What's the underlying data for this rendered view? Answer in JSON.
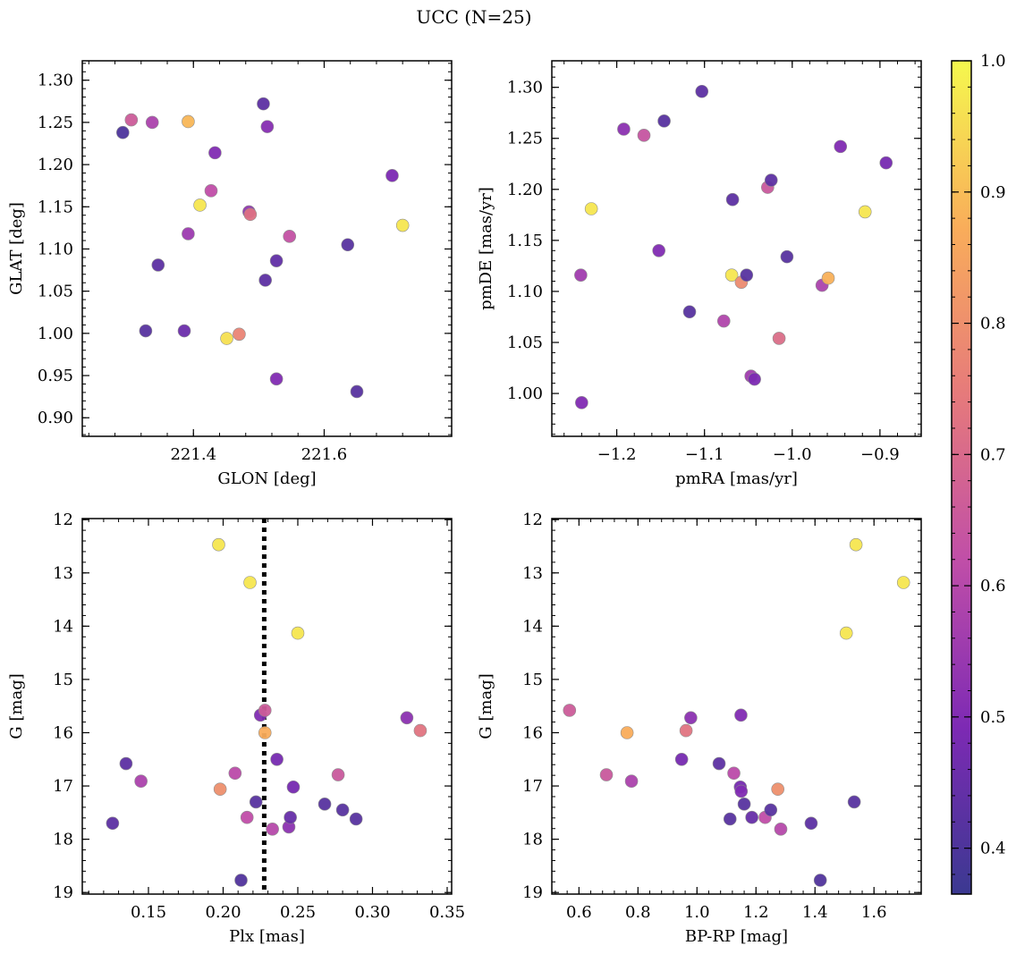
{
  "figure": {
    "title": "UCC (N=25)"
  },
  "colorbar": {
    "range": [
      0.365,
      1.0
    ],
    "ticks": [
      0.4,
      0.5,
      0.6,
      0.7,
      0.8,
      0.9,
      1.0
    ],
    "tick_labels": [
      "0.4",
      "0.5",
      "0.6",
      "0.7",
      "0.8",
      "0.9",
      "1.0"
    ],
    "colormap": "plasma",
    "stops": [
      "#3b3991",
      "#7d2ab4",
      "#c04ea8",
      "#e67a7b",
      "#f9ad5a",
      "#f5f84e"
    ]
  },
  "chart_data": [
    {
      "id": "glon-glat",
      "type": "scatter",
      "xlabel": "GLON [deg]",
      "ylabel": "GLAT [deg]",
      "xlim": [
        221.23,
        221.795
      ],
      "ylim": [
        0.878,
        1.323
      ],
      "xticks": [
        221.4,
        221.6
      ],
      "xtick_labels": [
        "221.4",
        "221.6"
      ],
      "yticks": [
        0.9,
        0.95,
        1.0,
        1.05,
        1.1,
        1.15,
        1.2,
        1.25,
        1.3
      ],
      "ytick_labels": [
        "0.90",
        "0.95",
        "1.00",
        "1.05",
        "1.10",
        "1.15",
        "1.20",
        "1.25",
        "1.30"
      ],
      "y_inverted": false,
      "points": [
        {
          "x": 221.292,
          "y": 1.238,
          "c": 0.4
        },
        {
          "x": 221.305,
          "y": 1.253,
          "c": 0.66
        },
        {
          "x": 221.337,
          "y": 1.25,
          "c": 0.58
        },
        {
          "x": 221.392,
          "y": 1.251,
          "c": 0.89
        },
        {
          "x": 221.346,
          "y": 1.081,
          "c": 0.43
        },
        {
          "x": 221.327,
          "y": 1.003,
          "c": 0.42
        },
        {
          "x": 221.386,
          "y": 1.003,
          "c": 0.46
        },
        {
          "x": 221.392,
          "y": 1.118,
          "c": 0.55
        },
        {
          "x": 221.41,
          "y": 1.152,
          "c": 0.97
        },
        {
          "x": 221.427,
          "y": 1.169,
          "c": 0.62
        },
        {
          "x": 221.433,
          "y": 1.214,
          "c": 0.5
        },
        {
          "x": 221.451,
          "y": 0.994,
          "c": 0.96
        },
        {
          "x": 221.47,
          "y": 0.999,
          "c": 0.77
        },
        {
          "x": 221.485,
          "y": 1.144,
          "c": 0.53
        },
        {
          "x": 221.487,
          "y": 1.141,
          "c": 0.72
        },
        {
          "x": 221.507,
          "y": 1.272,
          "c": 0.43
        },
        {
          "x": 221.513,
          "y": 1.245,
          "c": 0.51
        },
        {
          "x": 221.51,
          "y": 1.063,
          "c": 0.43
        },
        {
          "x": 221.527,
          "y": 1.086,
          "c": 0.44
        },
        {
          "x": 221.527,
          "y": 0.946,
          "c": 0.5
        },
        {
          "x": 221.547,
          "y": 1.115,
          "c": 0.63
        },
        {
          "x": 221.636,
          "y": 1.105,
          "c": 0.42
        },
        {
          "x": 221.65,
          "y": 0.931,
          "c": 0.42
        },
        {
          "x": 221.704,
          "y": 1.187,
          "c": 0.49
        },
        {
          "x": 221.72,
          "y": 1.128,
          "c": 0.97
        }
      ]
    },
    {
      "id": "pmra-pmde",
      "type": "scatter",
      "xlabel": "pmRA [mas/yr]",
      "ylabel": "pmDE [mas/yr]",
      "xlim": [
        -1.274,
        -0.853
      ],
      "ylim": [
        0.958,
        1.326
      ],
      "xticks": [
        -1.2,
        -1.1,
        -1.0,
        -0.9
      ],
      "xtick_labels": [
        "−1.2",
        "−1.1",
        "−1.0",
        "−0.9"
      ],
      "yticks": [
        1.0,
        1.05,
        1.1,
        1.15,
        1.2,
        1.25,
        1.3
      ],
      "ytick_labels": [
        "1.00",
        "1.05",
        "1.10",
        "1.15",
        "1.20",
        "1.25",
        "1.30"
      ],
      "y_inverted": false,
      "points": [
        {
          "x": -1.241,
          "y": 1.116,
          "c": 0.56
        },
        {
          "x": -1.24,
          "y": 0.991,
          "c": 0.5
        },
        {
          "x": -1.229,
          "y": 1.181,
          "c": 0.97
        },
        {
          "x": -1.192,
          "y": 1.259,
          "c": 0.52
        },
        {
          "x": -1.169,
          "y": 1.253,
          "c": 0.64
        },
        {
          "x": -1.152,
          "y": 1.14,
          "c": 0.5
        },
        {
          "x": -1.146,
          "y": 1.267,
          "c": 0.42
        },
        {
          "x": -1.117,
          "y": 1.08,
          "c": 0.42
        },
        {
          "x": -1.103,
          "y": 1.296,
          "c": 0.43
        },
        {
          "x": -1.078,
          "y": 1.071,
          "c": 0.59
        },
        {
          "x": -1.068,
          "y": 1.19,
          "c": 0.43
        },
        {
          "x": -1.069,
          "y": 1.116,
          "c": 0.97
        },
        {
          "x": -1.058,
          "y": 1.109,
          "c": 0.79
        },
        {
          "x": -1.052,
          "y": 1.116,
          "c": 0.42
        },
        {
          "x": -1.047,
          "y": 1.017,
          "c": 0.56
        },
        {
          "x": -1.043,
          "y": 1.014,
          "c": 0.49
        },
        {
          "x": -1.028,
          "y": 1.202,
          "c": 0.65
        },
        {
          "x": -1.024,
          "y": 1.209,
          "c": 0.43
        },
        {
          "x": -1.015,
          "y": 1.054,
          "c": 0.71
        },
        {
          "x": -1.006,
          "y": 1.134,
          "c": 0.42
        },
        {
          "x": -0.966,
          "y": 1.106,
          "c": 0.58
        },
        {
          "x": -0.959,
          "y": 1.113,
          "c": 0.88
        },
        {
          "x": -0.945,
          "y": 1.242,
          "c": 0.5
        },
        {
          "x": -0.917,
          "y": 1.178,
          "c": 0.97
        },
        {
          "x": -0.893,
          "y": 1.226,
          "c": 0.48
        }
      ]
    },
    {
      "id": "plx-g",
      "type": "scatter",
      "xlabel": "Plx [mas]",
      "ylabel": "G [mag]",
      "xlim": [
        0.1057,
        0.353
      ],
      "ylim": [
        11.98,
        19.03
      ],
      "xticks": [
        0.15,
        0.2,
        0.25,
        0.3,
        0.35
      ],
      "xtick_labels": [
        "0.15",
        "0.20",
        "0.25",
        "0.30",
        "0.35"
      ],
      "yticks": [
        12,
        13,
        14,
        15,
        16,
        17,
        18,
        19
      ],
      "ytick_labels": [
        "12",
        "13",
        "14",
        "15",
        "16",
        "17",
        "18",
        "19"
      ],
      "y_inverted": true,
      "vline": 0.2275,
      "points": [
        {
          "x": 0.197,
          "y": 12.47,
          "c": 0.97
        },
        {
          "x": 0.218,
          "y": 13.18,
          "c": 0.97
        },
        {
          "x": 0.25,
          "y": 14.13,
          "c": 0.97
        },
        {
          "x": 0.225,
          "y": 15.67,
          "c": 0.5
        },
        {
          "x": 0.228,
          "y": 15.58,
          "c": 0.66
        },
        {
          "x": 0.228,
          "y": 16.0,
          "c": 0.87
        },
        {
          "x": 0.236,
          "y": 16.5,
          "c": 0.48
        },
        {
          "x": 0.323,
          "y": 15.72,
          "c": 0.52
        },
        {
          "x": 0.332,
          "y": 15.96,
          "c": 0.73
        },
        {
          "x": 0.135,
          "y": 16.58,
          "c": 0.43
        },
        {
          "x": 0.145,
          "y": 16.91,
          "c": 0.58
        },
        {
          "x": 0.208,
          "y": 16.76,
          "c": 0.61
        },
        {
          "x": 0.198,
          "y": 17.06,
          "c": 0.8
        },
        {
          "x": 0.222,
          "y": 17.3,
          "c": 0.42
        },
        {
          "x": 0.247,
          "y": 17.02,
          "c": 0.48
        },
        {
          "x": 0.277,
          "y": 16.79,
          "c": 0.65
        },
        {
          "x": 0.126,
          "y": 17.7,
          "c": 0.43
        },
        {
          "x": 0.216,
          "y": 17.59,
          "c": 0.62
        },
        {
          "x": 0.233,
          "y": 17.81,
          "c": 0.6
        },
        {
          "x": 0.244,
          "y": 17.77,
          "c": 0.52
        },
        {
          "x": 0.245,
          "y": 17.59,
          "c": 0.45
        },
        {
          "x": 0.268,
          "y": 17.34,
          "c": 0.42
        },
        {
          "x": 0.28,
          "y": 17.45,
          "c": 0.42
        },
        {
          "x": 0.289,
          "y": 17.62,
          "c": 0.42
        },
        {
          "x": 0.212,
          "y": 18.77,
          "c": 0.41
        }
      ]
    },
    {
      "id": "bprp-g",
      "type": "scatter",
      "xlabel": "BP-RP [mag]",
      "ylabel": "G [mag]",
      "xlim": [
        0.508,
        1.76
      ],
      "ylim": [
        11.98,
        19.03
      ],
      "xticks": [
        0.6,
        0.8,
        1.0,
        1.2,
        1.4,
        1.6
      ],
      "xtick_labels": [
        "0.6",
        "0.8",
        "1.0",
        "1.2",
        "1.4",
        "1.6"
      ],
      "yticks": [
        12,
        13,
        14,
        15,
        16,
        17,
        18,
        19
      ],
      "ytick_labels": [
        "12",
        "13",
        "14",
        "15",
        "16",
        "17",
        "18",
        "19"
      ],
      "y_inverted": true,
      "points": [
        {
          "x": 1.539,
          "y": 12.47,
          "c": 0.97
        },
        {
          "x": 1.7,
          "y": 13.18,
          "c": 0.97
        },
        {
          "x": 1.506,
          "y": 14.13,
          "c": 0.97
        },
        {
          "x": 0.568,
          "y": 15.58,
          "c": 0.66
        },
        {
          "x": 0.763,
          "y": 16.0,
          "c": 0.87
        },
        {
          "x": 0.963,
          "y": 15.96,
          "c": 0.73
        },
        {
          "x": 0.979,
          "y": 15.72,
          "c": 0.52
        },
        {
          "x": 1.149,
          "y": 15.67,
          "c": 0.5
        },
        {
          "x": 0.948,
          "y": 16.5,
          "c": 0.48
        },
        {
          "x": 1.075,
          "y": 16.58,
          "c": 0.43
        },
        {
          "x": 0.693,
          "y": 16.79,
          "c": 0.65
        },
        {
          "x": 0.778,
          "y": 16.91,
          "c": 0.58
        },
        {
          "x": 1.125,
          "y": 16.76,
          "c": 0.61
        },
        {
          "x": 1.147,
          "y": 17.02,
          "c": 0.48
        },
        {
          "x": 1.274,
          "y": 17.06,
          "c": 0.8
        },
        {
          "x": 1.16,
          "y": 17.34,
          "c": 0.42
        },
        {
          "x": 1.533,
          "y": 17.3,
          "c": 0.42
        },
        {
          "x": 1.112,
          "y": 17.62,
          "c": 0.42
        },
        {
          "x": 1.186,
          "y": 17.59,
          "c": 0.45
        },
        {
          "x": 1.231,
          "y": 17.59,
          "c": 0.62
        },
        {
          "x": 1.25,
          "y": 17.45,
          "c": 0.42
        },
        {
          "x": 1.284,
          "y": 17.81,
          "c": 0.6
        },
        {
          "x": 1.387,
          "y": 17.7,
          "c": 0.43
        },
        {
          "x": 1.418,
          "y": 18.77,
          "c": 0.41
        },
        {
          "x": 1.15,
          "y": 17.1,
          "c": 0.5
        }
      ]
    }
  ]
}
